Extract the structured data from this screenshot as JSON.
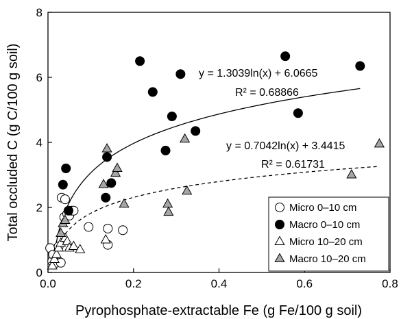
{
  "chart_data": {
    "type": "scatter",
    "xlabel": "Pyrophosphate-extractable Fe (g Fe/100 g soil)",
    "ylabel": "Total occluded C (g C/100 g soil)",
    "xlim": [
      0,
      0.8
    ],
    "ylim": [
      0,
      8
    ],
    "x_ticks": [
      "0.0",
      "0.2",
      "0.4",
      "0.6",
      "0.8"
    ],
    "y_ticks": [
      "0",
      "2",
      "4",
      "6",
      "8"
    ],
    "grid": false,
    "legend_position": "bottom-right",
    "series": [
      {
        "name": "Micro 0–10 cm",
        "marker": "circle",
        "fill": "#ffffff",
        "points": [
          [
            0.005,
            0.75
          ],
          [
            0.01,
            0.35
          ],
          [
            0.012,
            0.55
          ],
          [
            0.02,
            0.3
          ],
          [
            0.025,
            0.8
          ],
          [
            0.03,
            0.3
          ],
          [
            0.032,
            2.3
          ],
          [
            0.038,
            1.7
          ],
          [
            0.04,
            2.25
          ],
          [
            0.045,
            1.8
          ],
          [
            0.05,
            1.75
          ],
          [
            0.055,
            1.9
          ],
          [
            0.06,
            1.9
          ],
          [
            0.095,
            1.4
          ],
          [
            0.14,
            1.35
          ],
          [
            0.14,
            0.85
          ],
          [
            0.175,
            1.3
          ]
        ]
      },
      {
        "name": "Macro 0–10 cm",
        "marker": "circle",
        "fill": "#000000",
        "points": [
          [
            0.035,
            2.7
          ],
          [
            0.042,
            3.2
          ],
          [
            0.048,
            1.9
          ],
          [
            0.135,
            2.3
          ],
          [
            0.138,
            3.55
          ],
          [
            0.148,
            2.75
          ],
          [
            0.215,
            6.5
          ],
          [
            0.245,
            5.55
          ],
          [
            0.275,
            3.75
          ],
          [
            0.29,
            4.8
          ],
          [
            0.31,
            6.1
          ],
          [
            0.345,
            4.35
          ],
          [
            0.555,
            6.65
          ],
          [
            0.585,
            4.9
          ],
          [
            0.73,
            6.35
          ]
        ]
      },
      {
        "name": "Micro 10–20 cm",
        "marker": "triangle",
        "fill": "#ffffff",
        "points": [
          [
            0.01,
            0.2
          ],
          [
            0.015,
            0.4
          ],
          [
            0.02,
            0.55
          ],
          [
            0.025,
            0.75
          ],
          [
            0.03,
            0.9
          ],
          [
            0.04,
            1.05
          ],
          [
            0.045,
            0.95
          ],
          [
            0.05,
            0.75
          ],
          [
            0.06,
            0.8
          ],
          [
            0.075,
            0.7
          ],
          [
            0.135,
            1.0
          ]
        ]
      },
      {
        "name": "Macro 10–20 cm",
        "marker": "triangle",
        "fill": "#a6a6a6",
        "points": [
          [
            0.03,
            1.2
          ],
          [
            0.035,
            1.5
          ],
          [
            0.04,
            1.6
          ],
          [
            0.13,
            2.7
          ],
          [
            0.138,
            3.8
          ],
          [
            0.158,
            3.05
          ],
          [
            0.162,
            3.2
          ],
          [
            0.178,
            2.1
          ],
          [
            0.28,
            2.1
          ],
          [
            0.282,
            1.85
          ],
          [
            0.32,
            4.1
          ],
          [
            0.325,
            2.5
          ],
          [
            0.71,
            3.0
          ],
          [
            0.775,
            3.95
          ]
        ]
      }
    ],
    "fits": [
      {
        "series": "Macro 0–10 cm",
        "style": "solid",
        "a": 1.3039,
        "b": 6.0665,
        "equation": "y = 1.3039ln(x) + 6.0665",
        "r2_label": "R² = 0.68866",
        "x_range": [
          0.018,
          0.73
        ]
      },
      {
        "series": "Macro 10–20 cm",
        "style": "dashed",
        "a": 0.7042,
        "b": 3.4415,
        "equation": "y = 0.7042ln(x) + 3.4415",
        "r2_label": "R² = 0.61731",
        "x_range": [
          0.02,
          0.775
        ]
      }
    ]
  }
}
